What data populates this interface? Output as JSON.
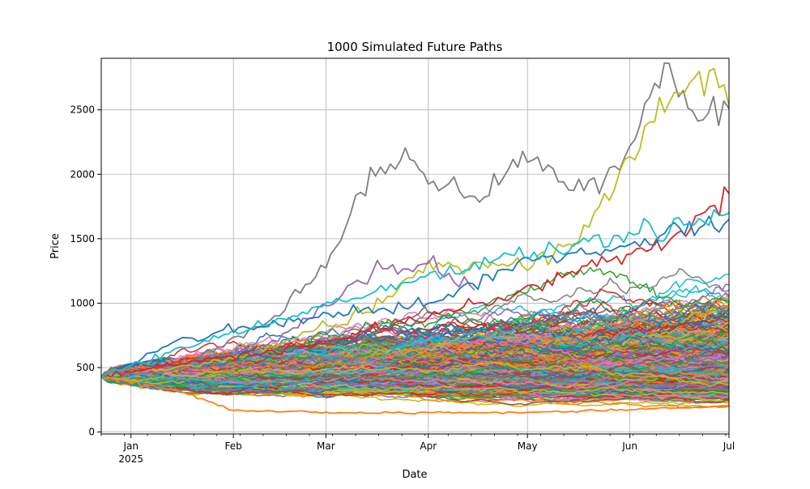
{
  "chart_data": {
    "type": "line",
    "title": "1000 Simulated Future Paths",
    "xlabel": "Date",
    "ylabel": "Price",
    "x_start": "2024-12-23",
    "x_end": "2025-07-01",
    "xlim": [
      "2024-12-23",
      "2025-07-01"
    ],
    "ylim": [
      -15,
      2900
    ],
    "grid": true,
    "x_ticks": [
      {
        "date": "2025-01-01",
        "label": "Jan",
        "sublabel": "2025"
      },
      {
        "date": "2025-02-01",
        "label": "Feb",
        "sublabel": ""
      },
      {
        "date": "2025-03-01",
        "label": "Mar",
        "sublabel": ""
      },
      {
        "date": "2025-04-01",
        "label": "Apr",
        "sublabel": ""
      },
      {
        "date": "2025-05-01",
        "label": "May",
        "sublabel": ""
      },
      {
        "date": "2025-06-01",
        "label": "Jun",
        "sublabel": ""
      },
      {
        "date": "2025-07-01",
        "label": "Jul",
        "sublabel": ""
      }
    ],
    "y_ticks": [
      0,
      500,
      1000,
      1500,
      2000,
      2500
    ],
    "num_paths": 1000,
    "start_value": 430,
    "highlighted_paths": [
      {
        "color": "#7f7f7f",
        "points": [
          [
            "2024-12-23",
            430
          ],
          [
            "2025-01-15",
            480
          ],
          [
            "2025-02-01",
            720
          ],
          [
            "2025-02-15",
            900
          ],
          [
            "2025-03-01",
            1300
          ],
          [
            "2025-03-10",
            1800
          ],
          [
            "2025-03-25",
            2150
          ],
          [
            "2025-04-01",
            1950
          ],
          [
            "2025-04-15",
            1800
          ],
          [
            "2025-05-01",
            2150
          ],
          [
            "2025-05-15",
            1900
          ],
          [
            "2025-06-01",
            2150
          ],
          [
            "2025-06-10",
            2750
          ],
          [
            "2025-06-20",
            2520
          ],
          [
            "2025-07-01",
            2510
          ]
        ]
      },
      {
        "color": "#bcbd22",
        "points": [
          [
            "2024-12-23",
            430
          ],
          [
            "2025-02-01",
            560
          ],
          [
            "2025-03-15",
            950
          ],
          [
            "2025-04-01",
            1300
          ],
          [
            "2025-05-01",
            1300
          ],
          [
            "2025-05-15",
            1450
          ],
          [
            "2025-06-01",
            2100
          ],
          [
            "2025-06-10",
            2550
          ],
          [
            "2025-06-25",
            2750
          ],
          [
            "2025-07-01",
            2530
          ]
        ]
      },
      {
        "color": "#9467bd",
        "points": [
          [
            "2024-12-23",
            430
          ],
          [
            "2025-02-10",
            650
          ],
          [
            "2025-03-15",
            1250
          ],
          [
            "2025-04-01",
            1300
          ],
          [
            "2025-04-15",
            1100
          ]
        ]
      },
      {
        "color": "#d62728",
        "points": [
          [
            "2024-12-23",
            430
          ],
          [
            "2025-03-01",
            700
          ],
          [
            "2025-05-01",
            1100
          ],
          [
            "2025-06-15",
            1500
          ],
          [
            "2025-07-01",
            1850
          ]
        ]
      },
      {
        "color": "#ff7f0e",
        "points": [
          [
            "2024-12-23",
            430
          ],
          [
            "2025-01-15",
            320
          ],
          [
            "2025-02-01",
            170
          ],
          [
            "2025-03-01",
            150
          ],
          [
            "2025-05-01",
            150
          ],
          [
            "2025-07-01",
            200
          ]
        ]
      },
      {
        "color": "#1f77b4",
        "points": [
          [
            "2024-12-23",
            430
          ],
          [
            "2025-01-15",
            700
          ],
          [
            "2025-02-01",
            800
          ],
          [
            "2025-04-01",
            1000
          ],
          [
            "2025-05-01",
            1350
          ],
          [
            "2025-06-01",
            1450
          ],
          [
            "2025-07-01",
            1650
          ]
        ]
      },
      {
        "color": "#17becf",
        "points": [
          [
            "2024-12-23",
            430
          ],
          [
            "2025-02-01",
            780
          ],
          [
            "2025-04-15",
            1300
          ],
          [
            "2025-05-15",
            1450
          ],
          [
            "2025-07-01",
            1700
          ]
        ]
      }
    ]
  }
}
